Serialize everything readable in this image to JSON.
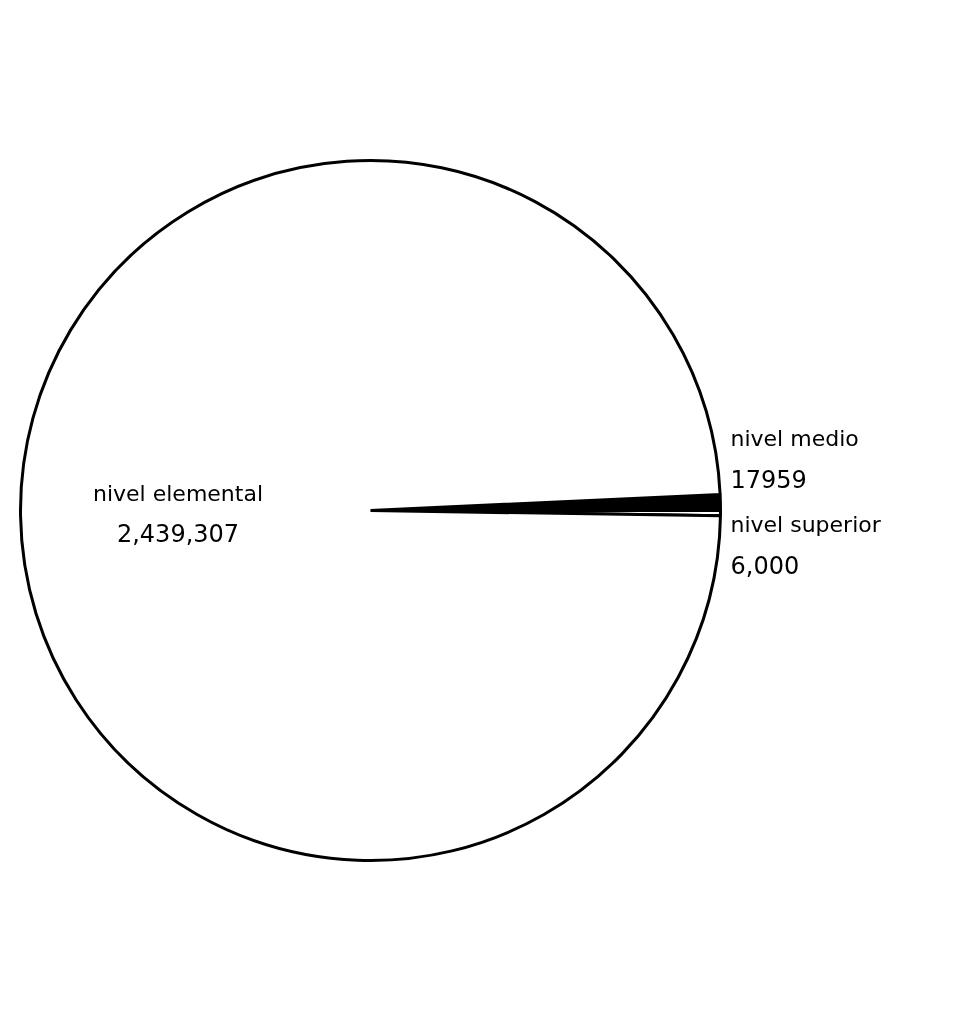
{
  "chart_data": {
    "type": "pie",
    "categories": [
      "nivel elemental",
      "nivel medio",
      "nivel superior"
    ],
    "values": [
      2439307,
      17959,
      6000
    ],
    "value_labels": [
      "2,439,307",
      "17959",
      "6,000"
    ],
    "colors": [
      "#ffffff",
      "#000000",
      "#ffffff"
    ]
  }
}
